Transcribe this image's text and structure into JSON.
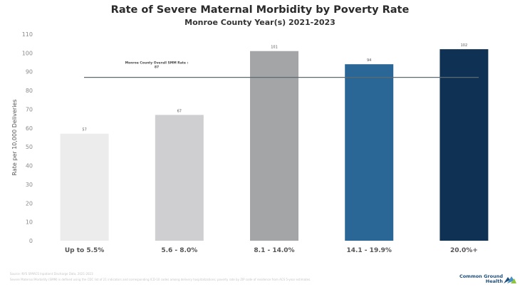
{
  "chart_data": {
    "type": "bar",
    "title": "Rate of Severe Maternal Morbidity by Poverty Rate",
    "subtitle": "Monroe County Year(s) 2021-2023",
    "ylabel": "Rate per 10,000 Deliveries",
    "ylim": [
      0,
      110
    ],
    "yticks": [
      0,
      10,
      20,
      30,
      40,
      50,
      60,
      70,
      80,
      90,
      100,
      110
    ],
    "categories": [
      "Up to 5.5%",
      "5.6 - 8.0%",
      "8.1 - 14.0%",
      "14.1 - 19.9%",
      "20.0%+"
    ],
    "values": [
      57,
      67,
      101,
      94,
      102
    ],
    "bar_colors": [
      "#ececec",
      "#cfcfd1",
      "#a4a5a7",
      "#2a6797",
      "#0f3254"
    ],
    "reference_line": {
      "value": 87,
      "label_line1": "Monroe County Overall SMM Rate :",
      "label_line2": "87",
      "color": "#5e6a6f"
    },
    "grid": false,
    "legend": "none"
  },
  "footer": {
    "line1": "Source: NYS SPARCS Inpatient Discharge Data, 2021-2023",
    "line2": "Severe Maternal Morbidity (SMM) is defined using the CDC list of 21 indicators and corresponding ICD-10 codes among delivery hospitalizations; poverty rate by ZIP code of residence from ACS 5-year estimates."
  },
  "logo": {
    "line1": "Common Ground",
    "line2": "Health",
    "colors": [
      "#1f4e79",
      "#4a90c2",
      "#8cc63f"
    ]
  }
}
